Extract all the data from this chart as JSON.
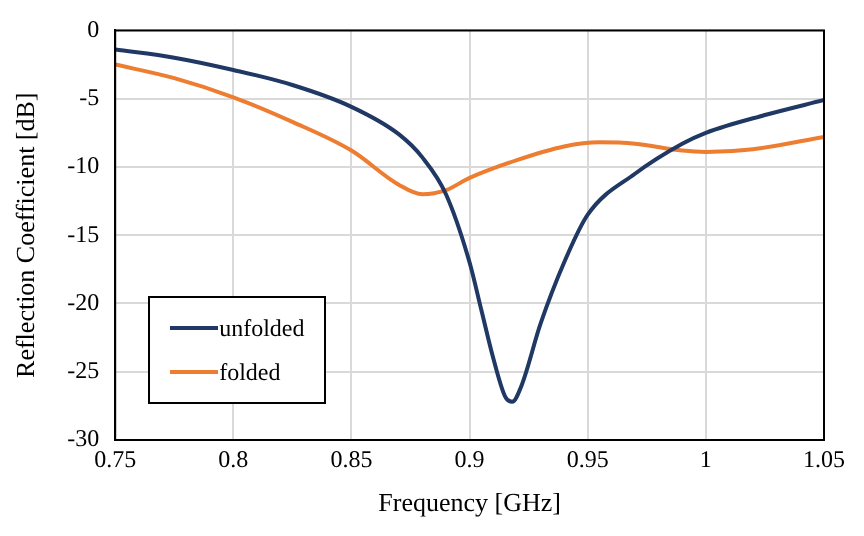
{
  "chart_data": {
    "type": "line",
    "xlabel": "Frequency [GHz]",
    "ylabel": "Reflection Coefficient [dB]",
    "xlim": [
      0.75,
      1.05
    ],
    "xticks": [
      {
        "value": 0.75,
        "label": "0.75"
      },
      {
        "value": 0.8,
        "label": "0.8"
      },
      {
        "value": 0.85,
        "label": "0.85"
      },
      {
        "value": 0.9,
        "label": "0.9"
      },
      {
        "value": 0.95,
        "label": "0.95"
      },
      {
        "value": 1,
        "label": "1"
      },
      {
        "value": 1.05,
        "label": "1.05"
      }
    ],
    "ylim": [
      -30,
      0
    ],
    "yticks": [
      -30,
      -25,
      -20,
      -15,
      -10,
      -5,
      0
    ],
    "grid": true,
    "legend": "bottom left",
    "marker": "none",
    "line_style": "solid",
    "series": [
      {
        "name": "unfolded",
        "color": "#203864",
        "x": [
          0.75,
          0.775,
          0.8,
          0.825,
          0.85,
          0.87,
          0.88,
          0.89,
          0.9,
          0.905,
          0.91,
          0.915,
          0.918,
          0.922,
          0.93,
          0.94,
          0.95,
          0.97,
          0.99,
          1.0,
          1.025,
          1.05
        ],
        "values": [
          -1.4,
          -2.0,
          -2.9,
          -4.0,
          -5.6,
          -7.6,
          -9.3,
          -12,
          -17,
          -20.5,
          -24,
          -26.8,
          -27.2,
          -26,
          -21.5,
          -17,
          -13.5,
          -10.5,
          -8.3,
          -7.5,
          -6.2,
          -5.1
        ]
      },
      {
        "name": "folded",
        "color": "#ed7d31",
        "x": [
          0.75,
          0.775,
          0.8,
          0.825,
          0.85,
          0.87,
          0.88,
          0.89,
          0.9,
          0.92,
          0.94,
          0.955,
          0.97,
          0.99,
          1.0,
          1.02,
          1.05
        ],
        "values": [
          -2.5,
          -3.5,
          -4.9,
          -6.7,
          -8.8,
          -11.3,
          -12.0,
          -11.7,
          -10.8,
          -9.5,
          -8.5,
          -8.2,
          -8.3,
          -8.8,
          -8.9,
          -8.7,
          -7.8
        ]
      }
    ]
  }
}
